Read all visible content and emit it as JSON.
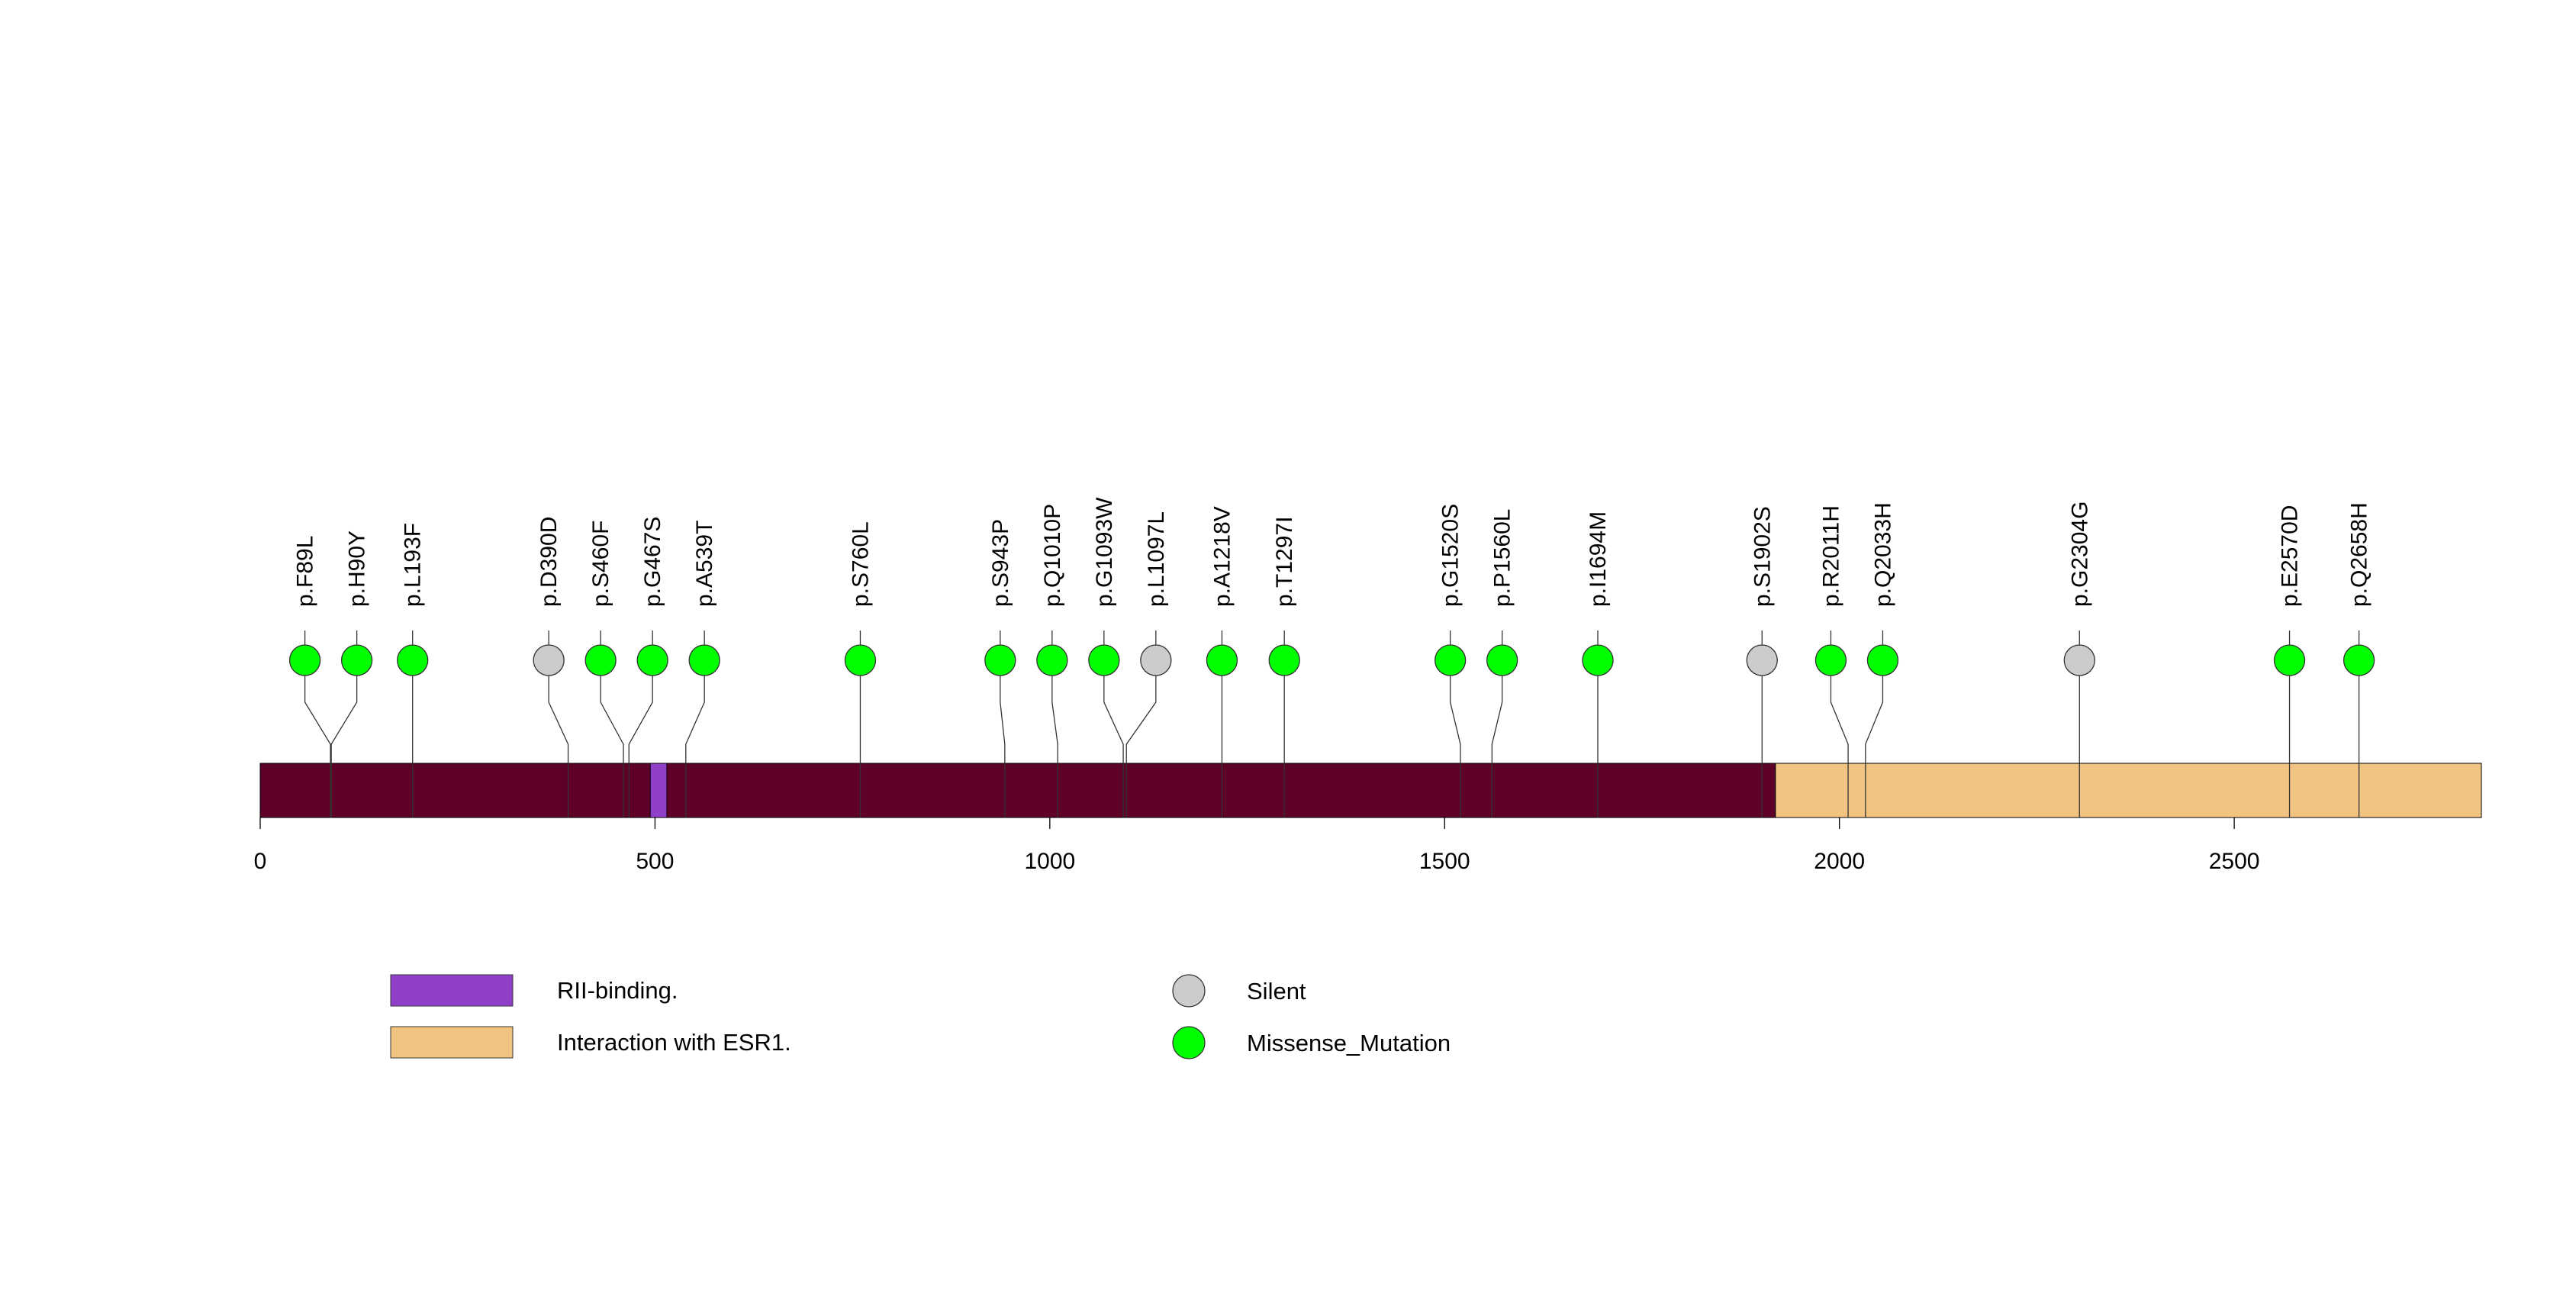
{
  "chart_data": {
    "type": "lollipop",
    "protein_length": 2813,
    "backbone_color": "#5E0028",
    "x_ticks": [
      0,
      500,
      1000,
      1500,
      2000,
      2500
    ],
    "domains": [
      {
        "name": "RII-binding.",
        "start": 494,
        "end": 515,
        "color": "#9040C8"
      },
      {
        "name": "Interaction with ESR1.",
        "start": 1919,
        "end": 2813,
        "color": "#F2C482"
      }
    ],
    "mutations": [
      {
        "label": "p.F89L",
        "pos": 89,
        "type": "Missense_Mutation"
      },
      {
        "label": "p.H90Y",
        "pos": 90,
        "type": "Missense_Mutation"
      },
      {
        "label": "p.L193F",
        "pos": 193,
        "type": "Missense_Mutation"
      },
      {
        "label": "p.D390D",
        "pos": 390,
        "type": "Silent"
      },
      {
        "label": "p.S460F",
        "pos": 460,
        "type": "Missense_Mutation"
      },
      {
        "label": "p.G467S",
        "pos": 467,
        "type": "Missense_Mutation"
      },
      {
        "label": "p.A539T",
        "pos": 539,
        "type": "Missense_Mutation"
      },
      {
        "label": "p.S760L",
        "pos": 760,
        "type": "Missense_Mutation"
      },
      {
        "label": "p.S943P",
        "pos": 943,
        "type": "Missense_Mutation"
      },
      {
        "label": "p.Q1010P",
        "pos": 1010,
        "type": "Missense_Mutation"
      },
      {
        "label": "p.G1093W",
        "pos": 1093,
        "type": "Missense_Mutation"
      },
      {
        "label": "p.L1097L",
        "pos": 1097,
        "type": "Silent"
      },
      {
        "label": "p.A1218V",
        "pos": 1218,
        "type": "Missense_Mutation"
      },
      {
        "label": "p.T1297I",
        "pos": 1297,
        "type": "Missense_Mutation"
      },
      {
        "label": "p.G1520S",
        "pos": 1520,
        "type": "Missense_Mutation"
      },
      {
        "label": "p.P1560L",
        "pos": 1560,
        "type": "Missense_Mutation"
      },
      {
        "label": "p.I1694M",
        "pos": 1694,
        "type": "Missense_Mutation"
      },
      {
        "label": "p.S1902S",
        "pos": 1902,
        "type": "Silent"
      },
      {
        "label": "p.R2011H",
        "pos": 2011,
        "type": "Missense_Mutation"
      },
      {
        "label": "p.Q2033H",
        "pos": 2033,
        "type": "Missense_Mutation"
      },
      {
        "label": "p.G2304G",
        "pos": 2304,
        "type": "Silent"
      },
      {
        "label": "p.E2570D",
        "pos": 2570,
        "type": "Missense_Mutation"
      },
      {
        "label": "p.Q2658H",
        "pos": 2658,
        "type": "Missense_Mutation"
      }
    ],
    "mutation_types": [
      {
        "name": "Silent",
        "color": "#CCCCCC"
      },
      {
        "name": "Missense_Mutation",
        "color": "#00FF00"
      }
    ]
  }
}
